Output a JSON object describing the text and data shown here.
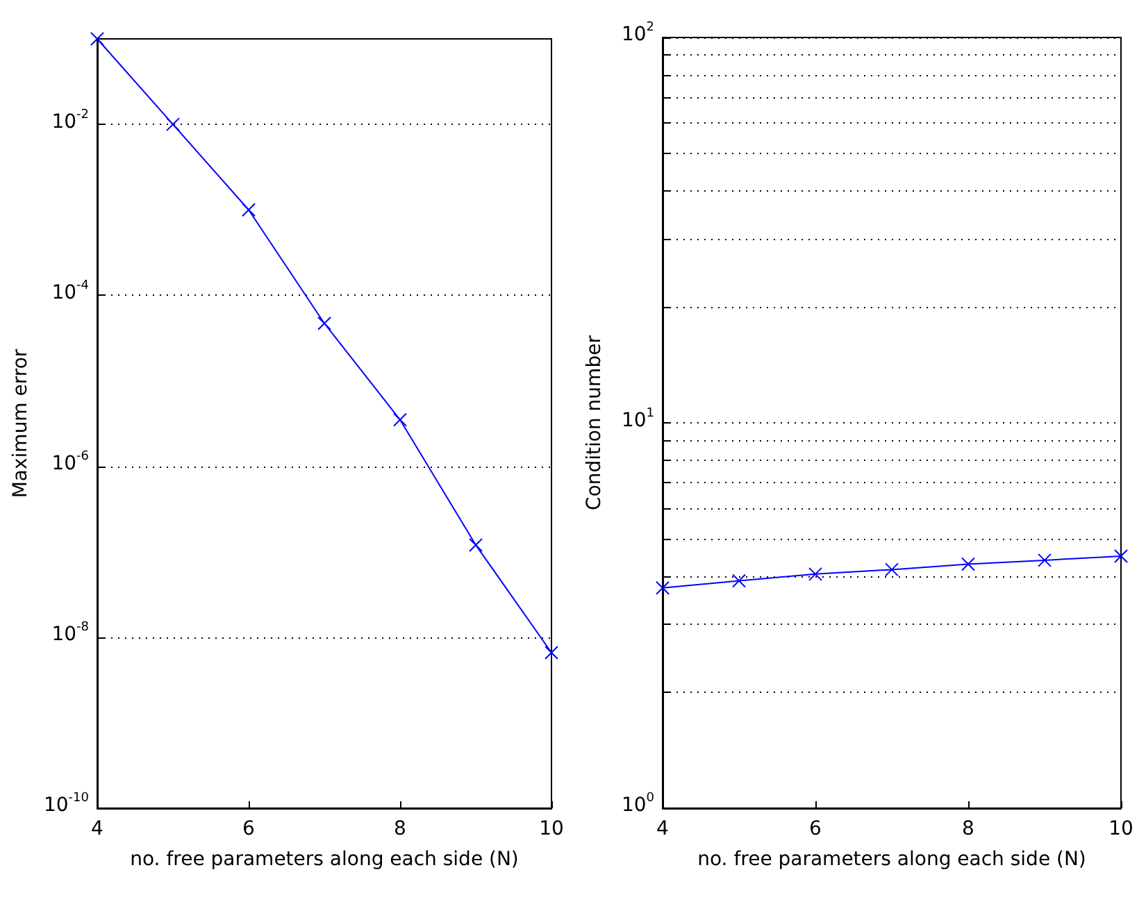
{
  "chart_data": [
    {
      "type": "line",
      "xlabel": "no. free parameters along each side (N)",
      "ylabel": "Maximum error",
      "x": [
        4,
        5,
        6,
        7,
        8,
        9,
        10
      ],
      "series": [
        {
          "color": "#0000ff",
          "values": [
            0.1,
            0.01,
            0.001,
            4.7e-05,
            3.5e-06,
            1.2e-07,
            6.6e-09
          ]
        }
      ],
      "xlim": [
        4,
        10
      ],
      "xticks": [
        4,
        6,
        8,
        10
      ],
      "ylim": [
        1e-10,
        0.1
      ],
      "yticks": [
        {
          "value": 1e-10,
          "label": "10$^{-10}$"
        },
        {
          "value": 1e-08,
          "label": "10$^{-8}$"
        },
        {
          "value": 1e-06,
          "label": "10$^{-6}$"
        },
        {
          "value": 0.0001,
          "label": "10$^{-4}$"
        },
        {
          "value": 0.01,
          "label": "10$^{-2}$"
        }
      ],
      "log": "y",
      "grid": "y",
      "marker": "cross",
      "line_style": "solid"
    },
    {
      "type": "line",
      "xlabel": "no. free parameters along each side (N)",
      "ylabel": "Condition number",
      "x": [
        4,
        5,
        6,
        7,
        8,
        9,
        10
      ],
      "series": [
        {
          "color": "#0000ff",
          "values": [
            3.73,
            3.89,
            4.05,
            4.16,
            4.3,
            4.4,
            4.51
          ]
        }
      ],
      "xlim": [
        4,
        10
      ],
      "xticks": [
        4,
        6,
        8,
        10
      ],
      "ylim": [
        1,
        100
      ],
      "yticks": [
        {
          "value": 1,
          "label": "10$^{0}$"
        },
        {
          "value": 2,
          "label": null
        },
        {
          "value": 3,
          "label": null
        },
        {
          "value": 4,
          "label": null
        },
        {
          "value": 5,
          "label": null
        },
        {
          "value": 6,
          "label": null
        },
        {
          "value": 7,
          "label": null
        },
        {
          "value": 8,
          "label": null
        },
        {
          "value": 9,
          "label": null
        },
        {
          "value": 10,
          "label": "10$^{1}$"
        },
        {
          "value": 20,
          "label": null
        },
        {
          "value": 30,
          "label": null
        },
        {
          "value": 40,
          "label": null
        },
        {
          "value": 50,
          "label": null
        },
        {
          "value": 60,
          "label": null
        },
        {
          "value": 70,
          "label": null
        },
        {
          "value": 80,
          "label": null
        },
        {
          "value": 90,
          "label": null
        },
        {
          "value": 100,
          "label": "10$^{2}$"
        }
      ],
      "log": "y",
      "grid": "y",
      "marker": "cross",
      "line_style": "solid"
    }
  ]
}
